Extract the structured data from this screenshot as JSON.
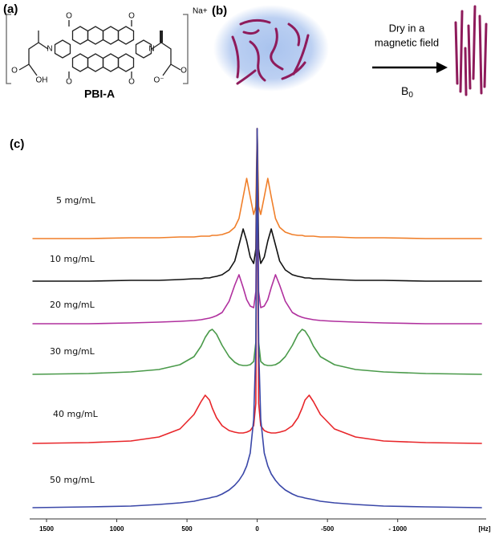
{
  "panel_labels": [
    "(a)",
    "(b)",
    "(c)"
  ],
  "structure": {
    "name": "PBI-A",
    "counterion": "Na+",
    "atoms": [
      "O",
      "O",
      "O",
      "O",
      "N",
      "N",
      "O",
      "OH",
      "O⁻",
      "O"
    ]
  },
  "scheme": {
    "process": [
      "Dry in a",
      "magnetic field"
    ],
    "field_symbol": "B",
    "field_subscript": "0"
  },
  "chart_data": {
    "type": "line",
    "x_unit": "[Hz]",
    "x": [
      1600,
      1200,
      900,
      700,
      550,
      450,
      400,
      370,
      340,
      320,
      290,
      250,
      200,
      160,
      130,
      100,
      75,
      50,
      25,
      10,
      0,
      -10,
      -25,
      -50,
      -75,
      -100,
      -130,
      -160,
      -200,
      -250,
      -290,
      -320,
      -340,
      -370,
      -400,
      -450,
      -550,
      -700,
      -900,
      -1200,
      -1600
    ],
    "xlim": [
      1620,
      -1630
    ],
    "xticks": [
      1500,
      1000,
      500,
      0,
      -500,
      {
        "value": -1000,
        "label": "- 1000"
      }
    ],
    "series": [
      {
        "name": "5 mg/mL",
        "color": "#f07f2a",
        "values": [
          0,
          0,
          1,
          1,
          2,
          2,
          3,
          3,
          3,
          4,
          4,
          5,
          8,
          14,
          25,
          52,
          75,
          52,
          30,
          40,
          137,
          40,
          30,
          52,
          75,
          52,
          25,
          14,
          8,
          5,
          4,
          4,
          3,
          3,
          3,
          2,
          2,
          1,
          1,
          0,
          0
        ]
      },
      {
        "name": "10 mg/mL",
        "color": "#111111",
        "values": [
          0,
          0,
          1,
          1,
          2,
          3,
          3,
          4,
          4,
          5,
          6,
          8,
          14,
          25,
          45,
          65,
          50,
          30,
          22,
          40,
          190,
          40,
          22,
          30,
          50,
          65,
          45,
          25,
          14,
          8,
          6,
          5,
          4,
          4,
          3,
          3,
          2,
          1,
          1,
          0,
          0
        ]
      },
      {
        "name": "20 mg/mL",
        "color": "#b0309e",
        "values": [
          0,
          0,
          1,
          2,
          3,
          4,
          5,
          6,
          7,
          8,
          10,
          14,
          28,
          48,
          61,
          45,
          30,
          22,
          20,
          40,
          243,
          40,
          20,
          22,
          30,
          45,
          61,
          48,
          28,
          14,
          10,
          8,
          7,
          6,
          5,
          4,
          3,
          2,
          1,
          0,
          0
        ]
      },
      {
        "name": "30 mg/mL",
        "color": "#4a9a4a",
        "values": [
          0,
          1,
          3,
          6,
          12,
          22,
          35,
          46,
          54,
          56,
          50,
          36,
          22,
          15,
          12,
          11,
          11,
          12,
          16,
          40,
          306,
          40,
          16,
          12,
          11,
          11,
          12,
          15,
          22,
          36,
          50,
          56,
          54,
          46,
          35,
          22,
          12,
          6,
          3,
          1,
          0
        ]
      },
      {
        "name": "40 mg/mL",
        "color": "#e8262a",
        "values": [
          0,
          1,
          3,
          8,
          18,
          36,
          52,
          60,
          54,
          44,
          32,
          22,
          16,
          14,
          13,
          13,
          14,
          16,
          22,
          50,
          392,
          50,
          22,
          16,
          14,
          13,
          13,
          14,
          16,
          22,
          32,
          44,
          54,
          60,
          52,
          36,
          18,
          8,
          3,
          1,
          0
        ]
      },
      {
        "name": "50 mg/mL",
        "color": "#3a47a8",
        "values": [
          0,
          1,
          2,
          4,
          6,
          8,
          10,
          11,
          12,
          13,
          14,
          17,
          22,
          28,
          34,
          42,
          52,
          68,
          110,
          200,
          472,
          200,
          110,
          68,
          52,
          42,
          34,
          28,
          22,
          17,
          14,
          13,
          12,
          11,
          10,
          8,
          6,
          4,
          2,
          1,
          0
        ]
      }
    ]
  }
}
